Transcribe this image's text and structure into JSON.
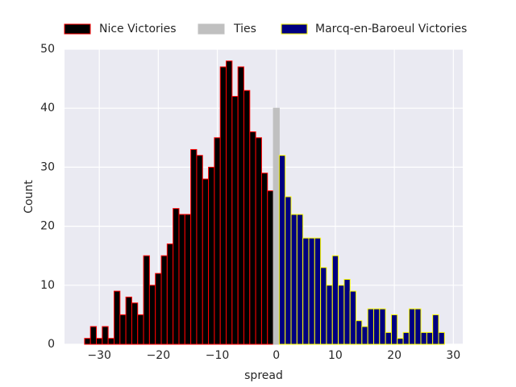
{
  "chart_data": {
    "type": "histogram",
    "xlabel": "spread",
    "ylabel": "Count",
    "xlim": [
      -35.9,
      31.6
    ],
    "ylim": [
      0,
      50
    ],
    "xticks": [
      {
        "value": -30,
        "label": "−30"
      },
      {
        "value": -20,
        "label": "−20"
      },
      {
        "value": -10,
        "label": "−10"
      },
      0,
      10,
      20,
      30
    ],
    "yticks": [
      0,
      10,
      20,
      30,
      40,
      50
    ],
    "grid": true,
    "legend": "top",
    "series": [
      {
        "name": "Nice Victories",
        "color": "#000000",
        "edgecolor": "#ff0000",
        "bins": [
          -32.5,
          -31.5,
          -30.5,
          -29.5,
          -28.5,
          -27.5,
          -26.5,
          -25.5,
          -24.5,
          -23.5,
          -22.5,
          -21.5,
          -20.5,
          -19.5,
          -18.5,
          -17.5,
          -16.5,
          -15.5,
          -14.5,
          -13.5,
          -12.5,
          -11.5,
          -10.5,
          -9.5,
          -8.5,
          -7.5,
          -6.5,
          -5.5,
          -4.5,
          -3.5,
          -2.5,
          -1.5,
          -0.5
        ],
        "values": [
          1,
          3,
          1,
          3,
          1,
          9,
          5,
          8,
          7,
          5,
          15,
          10,
          12,
          15,
          17,
          23,
          22,
          22,
          33,
          32,
          28,
          30,
          35,
          47,
          48,
          42,
          47,
          43,
          36,
          35,
          29,
          26
        ]
      },
      {
        "name": "Ties",
        "color": "#c0c0c0",
        "edgecolor": "#c0c0c0",
        "bins": [
          -0.5,
          0.5
        ],
        "values": [
          40
        ]
      },
      {
        "name": "Marcq-en-Baroeul Victories",
        "color": "#000080",
        "edgecolor": "#ffff00",
        "bins": [
          0.5,
          1.5,
          2.5,
          3.5,
          4.5,
          5.5,
          6.5,
          7.5,
          8.5,
          9.5,
          10.5,
          11.5,
          12.5,
          13.5,
          14.5,
          15.5,
          16.5,
          17.5,
          18.5,
          19.5,
          20.5,
          21.5,
          22.5,
          23.5,
          24.5,
          25.5,
          26.5,
          27.5,
          28.5
        ],
        "values": [
          32,
          25,
          22,
          22,
          18,
          18,
          18,
          13,
          10,
          15,
          10,
          11,
          9,
          4,
          3,
          6,
          6,
          6,
          2,
          5,
          1,
          2,
          6,
          6,
          2,
          2,
          5,
          2
        ]
      }
    ]
  }
}
